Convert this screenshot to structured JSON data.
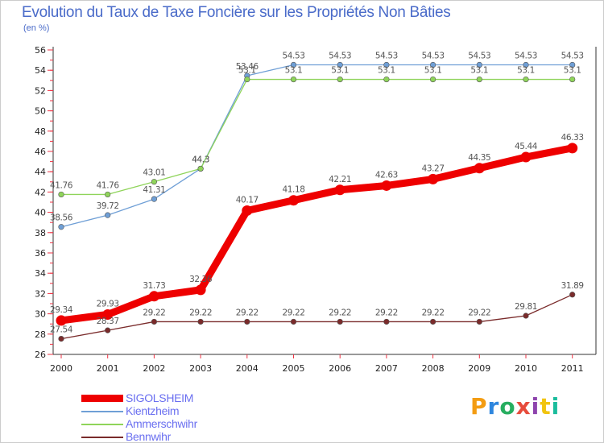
{
  "header": {
    "title": "Evolution du Taux de Taxe Foncière sur les Propriétés Non Bâties",
    "unit": "(en %)"
  },
  "brand": {
    "letters": [
      "P",
      "r",
      "o",
      "x",
      "i",
      "t",
      "i"
    ],
    "colors": [
      "#f39c12",
      "#2e86de",
      "#27ae60",
      "#e74c3c",
      "#8e44ad",
      "#f1c40f",
      "#1abc9c"
    ]
  },
  "chart_data": {
    "type": "line",
    "title": "Evolution du Taux de Taxe Foncière sur les Propriétés Non Bâties",
    "ylabel": "(en %)",
    "xlabel": "",
    "x": [
      "2000",
      "2001",
      "2002",
      "2003",
      "2004",
      "2005",
      "2006",
      "2007",
      "2008",
      "2009",
      "2010",
      "2011"
    ],
    "ylim": [
      26,
      56
    ],
    "yticks": [
      "26",
      "28",
      "30",
      "32",
      "34",
      "36",
      "38",
      "40",
      "42",
      "44",
      "46",
      "48",
      "50",
      "52",
      "54",
      "56"
    ],
    "grid": false,
    "legend_position": "bottom-left",
    "series": [
      {
        "name": "SIGOLSHEIM",
        "color": "#ee0000",
        "values": [
          29.34,
          29.93,
          31.73,
          32.36,
          40.17,
          41.18,
          42.21,
          42.63,
          43.27,
          44.35,
          45.44,
          46.33
        ],
        "labels": [
          "29.34",
          "29.93",
          "31.73",
          "32.36",
          "40.17",
          "41.18",
          "42.21",
          "42.63",
          "43.27",
          "44.35",
          "45.44",
          "46.33"
        ]
      },
      {
        "name": "Kientzheim",
        "color": "#6f9fd6",
        "values": [
          38.56,
          39.72,
          41.31,
          44.3,
          53.46,
          54.53,
          54.53,
          54.53,
          54.53,
          54.53,
          54.53,
          54.53
        ],
        "labels": [
          "38.56",
          "39.72",
          "41.31",
          "44.3",
          "53.46",
          "54.53",
          "54.53",
          "54.53",
          "54.53",
          "54.53",
          "54.53",
          "54.53"
        ]
      },
      {
        "name": "Ammerschwihr",
        "color": "#8fd45a",
        "values": [
          41.76,
          41.76,
          43.01,
          44.3,
          53.1,
          53.1,
          53.1,
          53.1,
          53.1,
          53.1,
          53.1,
          53.1
        ],
        "labels": [
          "41.76",
          "41.76",
          "43.01",
          "44.3",
          "53.1",
          "53.1",
          "53.1",
          "53.1",
          "53.1",
          "53.1",
          "53.1",
          "53.1"
        ]
      },
      {
        "name": "Bennwihr",
        "color": "#7a2b2b",
        "values": [
          27.54,
          28.37,
          29.22,
          29.22,
          29.22,
          29.22,
          29.22,
          29.22,
          29.22,
          29.22,
          29.81,
          31.89
        ],
        "labels": [
          "27.54",
          "28.37",
          "29.22",
          "29.22",
          "29.22",
          "29.22",
          "29.22",
          "29.22",
          "29.22",
          "29.22",
          "29.81",
          "31.89"
        ]
      }
    ]
  }
}
